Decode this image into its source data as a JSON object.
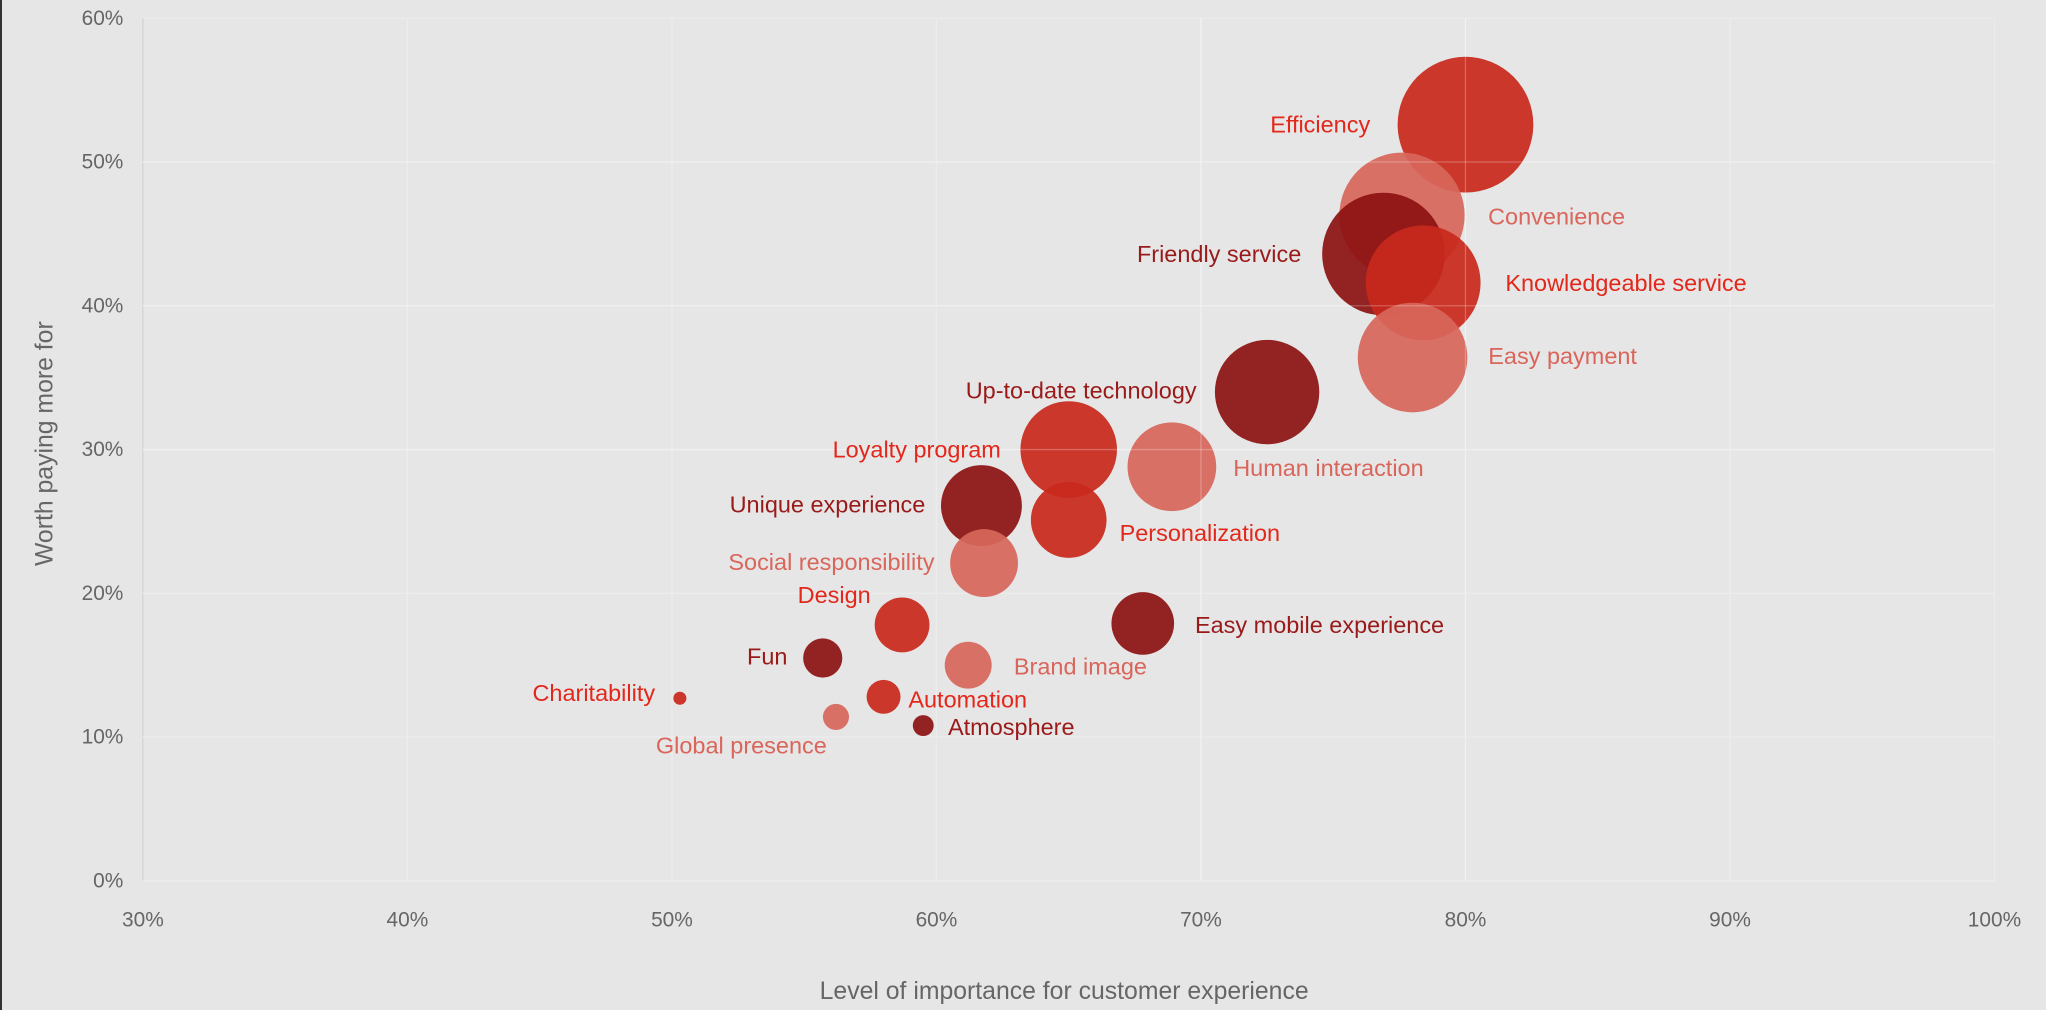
{
  "chart_data": {
    "type": "bubble",
    "xlabel": "Level of importance for customer experience",
    "ylabel": "Worth paying more for",
    "xlim": [
      30,
      100
    ],
    "ylim": [
      0,
      60
    ],
    "x_ticks": [
      "30%",
      "40%",
      "50%",
      "60%",
      "70%",
      "80%",
      "90%",
      "100%"
    ],
    "y_ticks": [
      "0%",
      "10%",
      "20%",
      "30%",
      "40%",
      "50%",
      "60%"
    ],
    "grid": true,
    "colors": {
      "bright": "#c8291c",
      "pale": "#d7665a",
      "dark": "#8c1212"
    },
    "label_colors": {
      "bright": "#e3271a",
      "pale": "#d9655b",
      "dark": "#9a1a1a"
    },
    "points": [
      {
        "name": "Efficiency",
        "x": 80.0,
        "y": 52.6,
        "size": 52,
        "shade": "bright"
      },
      {
        "name": "Convenience",
        "x": 77.6,
        "y": 46.3,
        "size": 48,
        "shade": "pale"
      },
      {
        "name": "Friendly service",
        "x": 76.9,
        "y": 43.6,
        "size": 47,
        "shade": "dark"
      },
      {
        "name": "Knowledgeable service",
        "x": 78.4,
        "y": 41.6,
        "size": 44,
        "shade": "bright"
      },
      {
        "name": "Easy payment",
        "x": 78.0,
        "y": 36.4,
        "size": 42,
        "shade": "pale"
      },
      {
        "name": "Up-to-date technology",
        "x": 72.5,
        "y": 34.0,
        "size": 40,
        "shade": "dark"
      },
      {
        "name": "Human interaction",
        "x": 68.9,
        "y": 28.8,
        "size": 34,
        "shade": "pale"
      },
      {
        "name": "Loyalty program",
        "x": 65.0,
        "y": 30.0,
        "size": 37,
        "shade": "bright"
      },
      {
        "name": "Unique experience",
        "x": 61.7,
        "y": 26.1,
        "size": 31,
        "shade": "dark"
      },
      {
        "name": "Personalization",
        "x": 65.0,
        "y": 25.1,
        "size": 29,
        "shade": "bright"
      },
      {
        "name": "Social responsibility",
        "x": 61.8,
        "y": 22.1,
        "size": 26,
        "shade": "pale"
      },
      {
        "name": "Easy mobile experience",
        "x": 67.8,
        "y": 17.9,
        "size": 24,
        "shade": "dark"
      },
      {
        "name": "Design",
        "x": 58.7,
        "y": 17.8,
        "size": 21,
        "shade": "bright"
      },
      {
        "name": "Fun",
        "x": 55.7,
        "y": 15.5,
        "size": 15,
        "shade": "dark"
      },
      {
        "name": "Brand image",
        "x": 61.2,
        "y": 15.0,
        "size": 18,
        "shade": "pale"
      },
      {
        "name": "Automation",
        "x": 58.0,
        "y": 12.8,
        "size": 13,
        "shade": "bright"
      },
      {
        "name": "Charitability",
        "x": 50.3,
        "y": 12.7,
        "size": 5,
        "shade": "bright"
      },
      {
        "name": "Global presence",
        "x": 56.2,
        "y": 11.4,
        "size": 10,
        "shade": "pale"
      },
      {
        "name": "Atmosphere",
        "x": 59.5,
        "y": 10.8,
        "size": 8,
        "shade": "dark"
      }
    ]
  }
}
